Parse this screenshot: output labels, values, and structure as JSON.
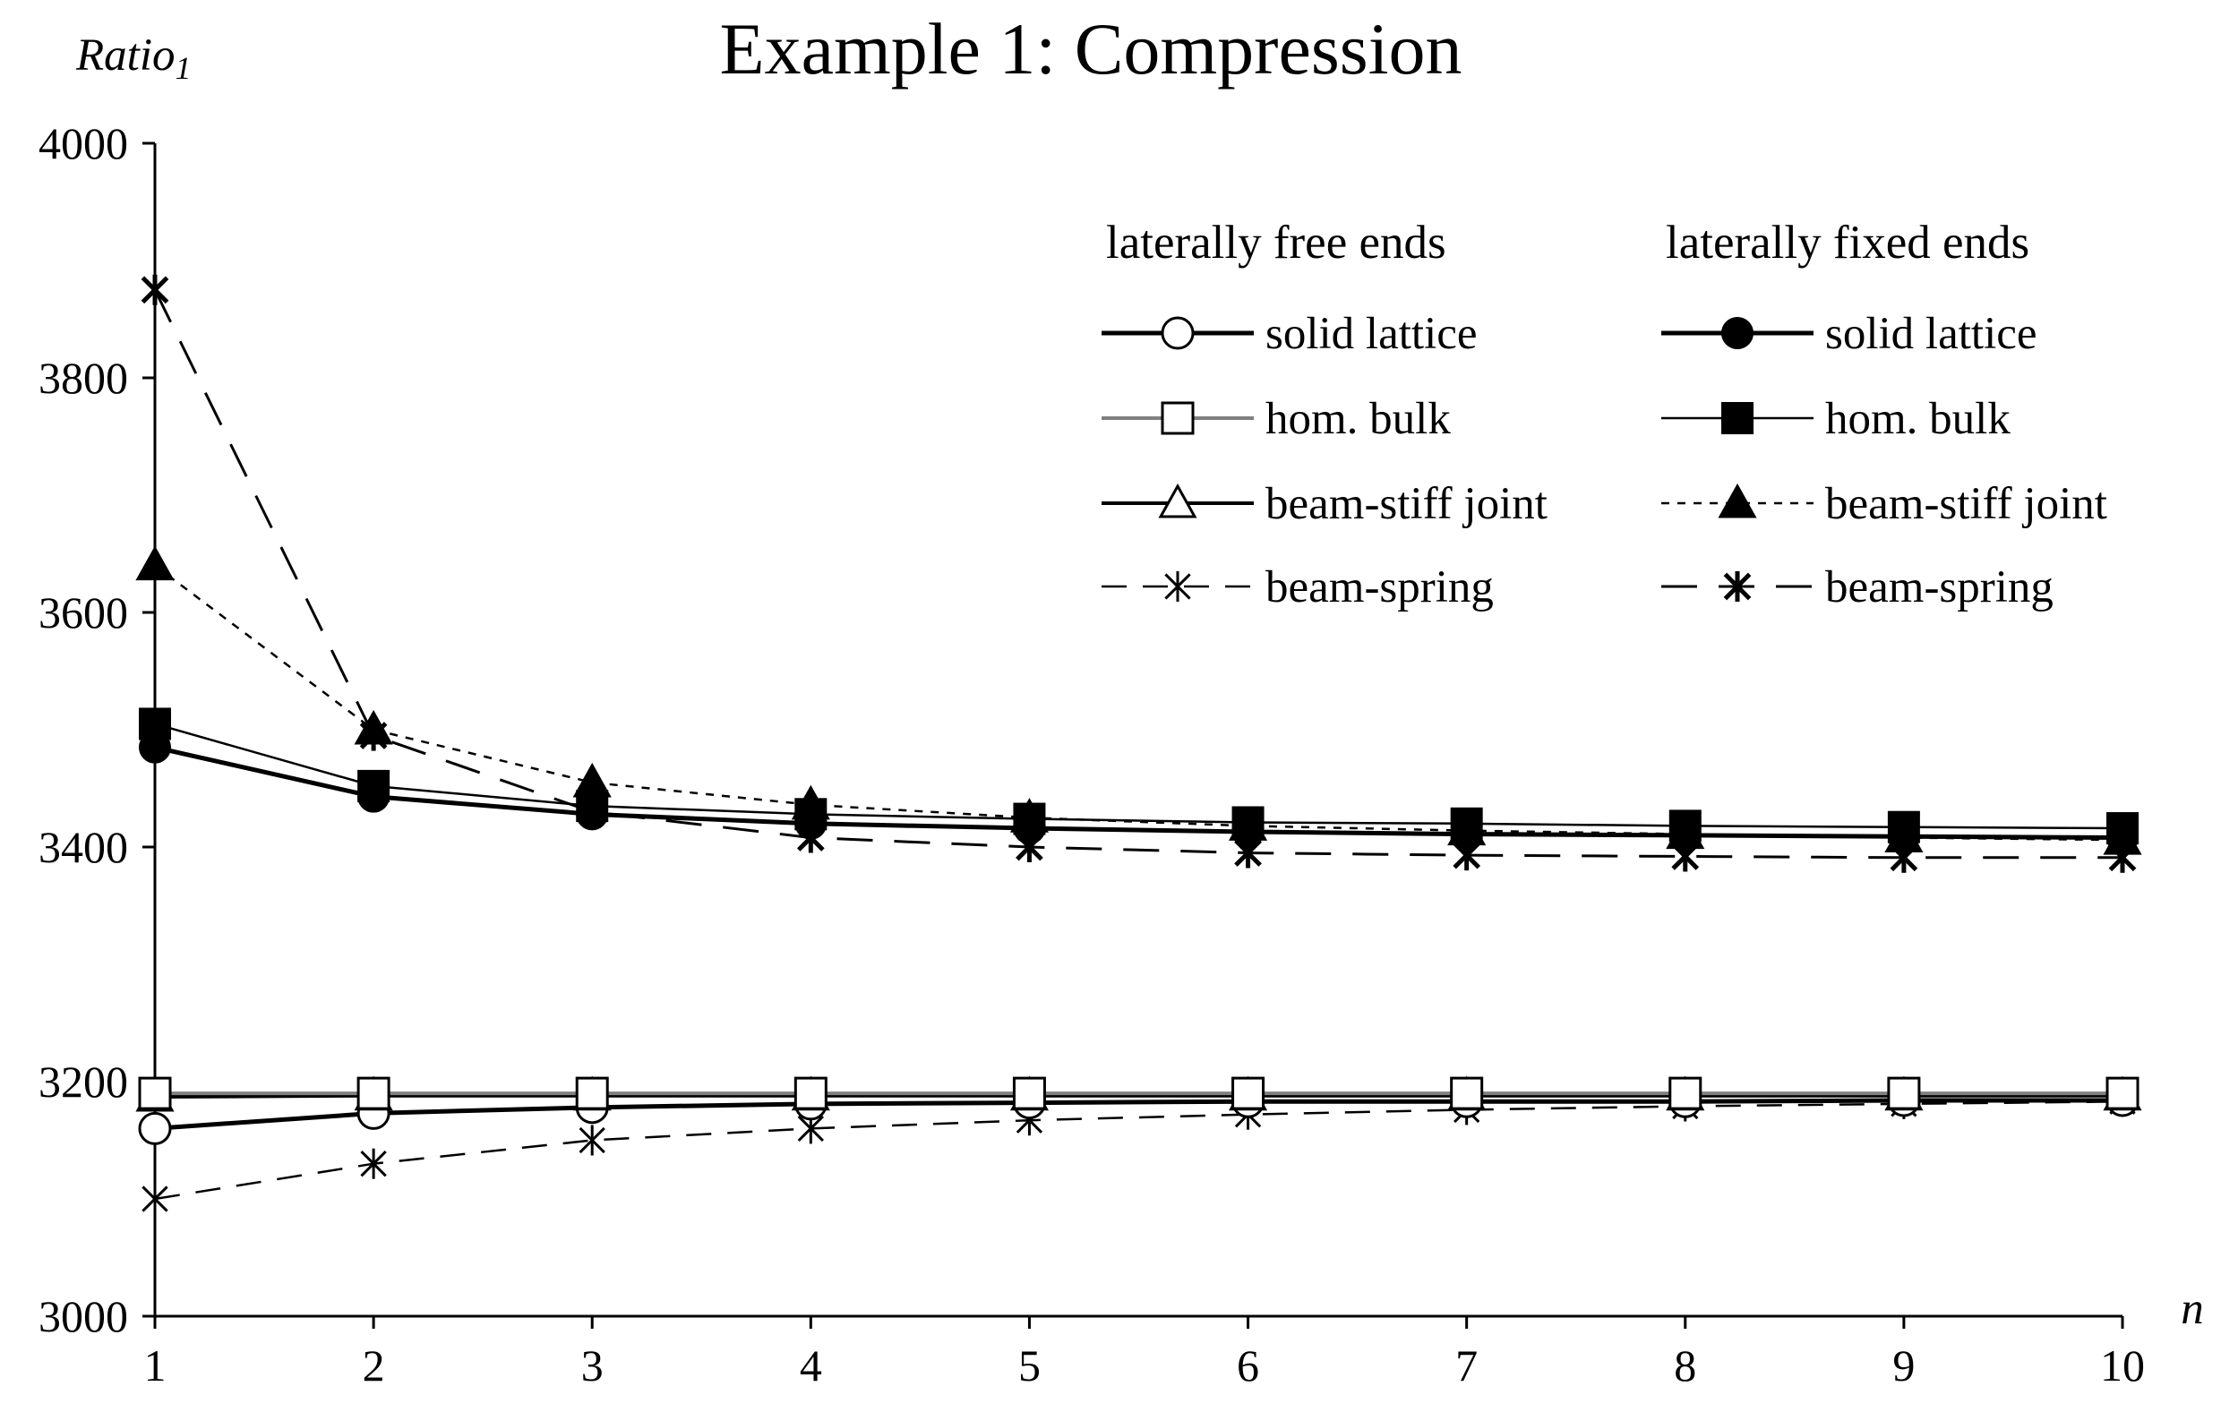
{
  "chart_data": {
    "type": "line",
    "title": "Example 1: Compression",
    "xlabel": "n",
    "ylabel_main": "Ratio",
    "ylabel_sub": "1",
    "xlim": [
      1,
      10
    ],
    "ylim": [
      3000,
      4000
    ],
    "x": [
      1,
      2,
      3,
      4,
      5,
      6,
      7,
      8,
      9,
      10
    ],
    "x_ticks": [
      "1",
      "2",
      "3",
      "4",
      "5",
      "6",
      "7",
      "8",
      "9",
      "10"
    ],
    "y_ticks": [
      3000,
      3200,
      3400,
      3600,
      3800,
      4000
    ],
    "y_tick_labels": [
      "3000",
      "3200",
      "3400",
      "3600",
      "3800",
      "4000"
    ],
    "grid": false,
    "legend_position": "top-right",
    "legend_groups": [
      {
        "heading": "laterally free ends"
      },
      {
        "heading": "laterally fixed ends"
      }
    ],
    "series": [
      {
        "name": "solid lattice",
        "group": 0,
        "marker": "circle-open",
        "line": "solid",
        "stroke": "#000000",
        "width": 5,
        "values": [
          3160,
          3173,
          3178,
          3181,
          3182,
          3183,
          3183,
          3183,
          3184,
          3184
        ]
      },
      {
        "name": "hom. bulk",
        "group": 0,
        "marker": "square-open",
        "line": "solid",
        "stroke": "#808080",
        "width": 4,
        "values": [
          3190,
          3190,
          3190,
          3190,
          3190,
          3190,
          3190,
          3190,
          3190,
          3190
        ]
      },
      {
        "name": "beam-stiff joint",
        "group": 0,
        "marker": "triangle-open",
        "line": "solid",
        "stroke": "#000000",
        "width": 4,
        "values": [
          3187,
          3188,
          3188,
          3188,
          3188,
          3188,
          3188,
          3188,
          3188,
          3188
        ]
      },
      {
        "name": "beam-spring",
        "group": 0,
        "marker": "asterisk",
        "line": "dash",
        "stroke": "#000000",
        "width": 2.5,
        "values": [
          3100,
          3130,
          3150,
          3160,
          3167,
          3172,
          3176,
          3179,
          3181,
          3183
        ]
      },
      {
        "name": "solid lattice",
        "group": 1,
        "marker": "circle-filled",
        "line": "solid",
        "stroke": "#000000",
        "width": 5,
        "values": [
          3485,
          3443,
          3428,
          3420,
          3416,
          3413,
          3411,
          3410,
          3409,
          3408
        ]
      },
      {
        "name": "hom. bulk",
        "group": 1,
        "marker": "square-filled",
        "line": "solid",
        "stroke": "#000000",
        "width": 2.5,
        "values": [
          3505,
          3452,
          3435,
          3428,
          3424,
          3421,
          3420,
          3418,
          3417,
          3416
        ]
      },
      {
        "name": "beam-stiff joint",
        "group": 1,
        "marker": "triangle-filled",
        "line": "dot",
        "stroke": "#000000",
        "width": 2.5,
        "values": [
          3640,
          3500,
          3455,
          3436,
          3425,
          3418,
          3414,
          3411,
          3408,
          3406
        ]
      },
      {
        "name": "beam-spring",
        "group": 1,
        "marker": "asterisk-bold",
        "line": "longdash",
        "stroke": "#000000",
        "width": 3,
        "values": [
          3875,
          3495,
          3430,
          3408,
          3400,
          3395,
          3393,
          3392,
          3391,
          3391
        ]
      }
    ]
  }
}
